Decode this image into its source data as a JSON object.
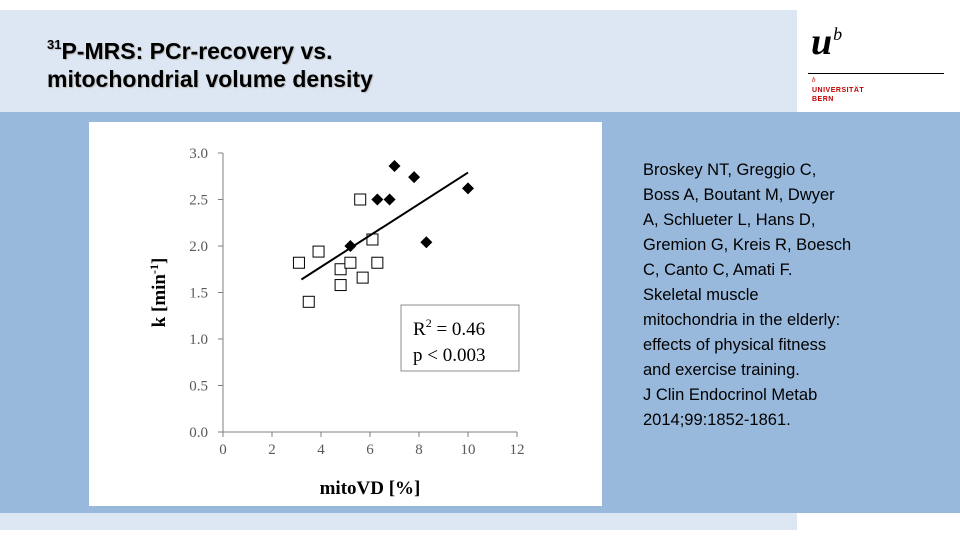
{
  "slide": {
    "title_sup": "31",
    "title_line1": "P-MRS: PCr-recovery vs.",
    "title_line2": "mitochondrial volume density",
    "colors": {
      "title_band": "#dde7f3",
      "main_band": "#98b9dc",
      "logo_red": "#c00000"
    }
  },
  "logo": {
    "mark": "u",
    "mark_sup": "b",
    "small_b": "b",
    "line1": "UNIVERSITÄT",
    "line2": "BERN"
  },
  "citation": {
    "lines": [
      "Broskey NT, Greggio C,",
      "Boss A, Boutant M, Dwyer",
      "A, Schlueter L, Hans D,",
      "Gremion G, Kreis R, Boesch",
      "C, Canto C, Amati F.",
      "Skeletal muscle",
      "mitochondria in the elderly:",
      "effects of physical fitness",
      "and exercise training.",
      "J Clin Endocrinol Metab",
      "2014;99:1852-1861."
    ]
  },
  "chart_data": {
    "type": "scatter",
    "xlabel": "mitoVD [%]",
    "ylabel_main": "k [min",
    "ylabel_sup": "-1",
    "ylabel_close": "]",
    "xlim": [
      0,
      12
    ],
    "ylim": [
      0,
      3
    ],
    "xticks": [
      0,
      2,
      4,
      6,
      8,
      10,
      12
    ],
    "yticks": [
      "0.0",
      "0.5",
      "1.0",
      "1.5",
      "2.0",
      "2.5",
      "3.0"
    ],
    "grid": false,
    "series": [
      {
        "name": "open squares",
        "marker": "square-open",
        "points": [
          [
            3.1,
            1.82
          ],
          [
            3.5,
            1.4
          ],
          [
            3.9,
            1.94
          ],
          [
            4.8,
            1.75
          ],
          [
            4.8,
            1.58
          ],
          [
            5.2,
            1.82
          ],
          [
            5.6,
            2.5
          ],
          [
            5.7,
            1.66
          ],
          [
            6.1,
            2.07
          ],
          [
            6.3,
            1.82
          ]
        ]
      },
      {
        "name": "filled diamonds",
        "marker": "diamond-filled",
        "points": [
          [
            5.2,
            2.0
          ],
          [
            6.3,
            2.5
          ],
          [
            6.8,
            2.5
          ],
          [
            7.0,
            2.86
          ],
          [
            7.8,
            2.74
          ],
          [
            8.3,
            2.04
          ],
          [
            10.0,
            2.62
          ]
        ]
      }
    ],
    "trendline": {
      "x": [
        3.2,
        10.0
      ],
      "y": [
        1.64,
        2.79
      ]
    },
    "annotation": {
      "r2_prefix": "R",
      "r2_sup": "2",
      "r2_value": " = 0.46",
      "p_line": "p < 0.003",
      "placement": "lower-right"
    }
  }
}
